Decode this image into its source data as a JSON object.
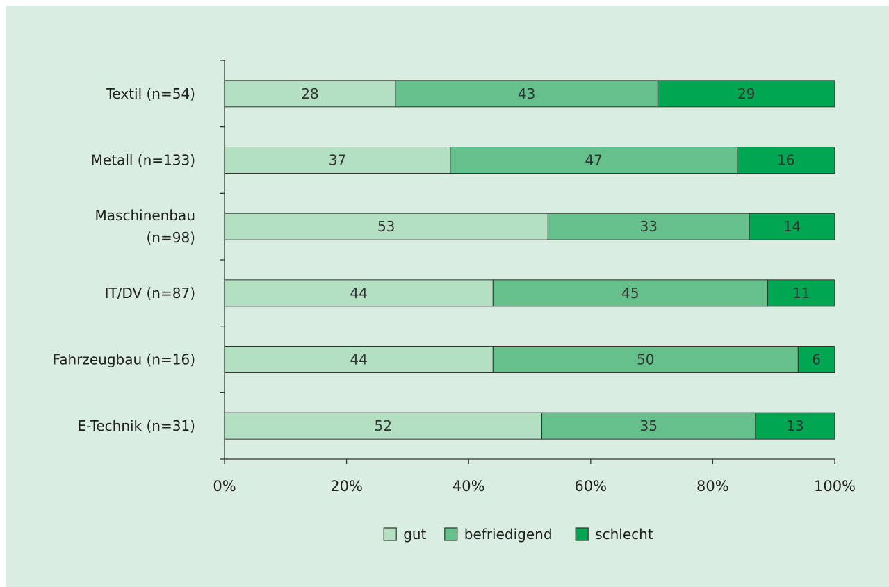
{
  "chart_data": {
    "type": "bar",
    "orientation": "horizontal",
    "stacked": true,
    "categories": [
      "Textil (n=54)",
      "Metall (n=133)",
      "Maschinenbau (n=98)",
      "IT/DV (n=87)",
      "Fahrzeugbau (n=16)",
      "E-Technik (n=31)"
    ],
    "category_lines": [
      [
        "Textil (n=54)"
      ],
      [
        "Metall (n=133)"
      ],
      [
        "Maschinenbau",
        "(n=98)"
      ],
      [
        "IT/DV (n=87)"
      ],
      [
        "Fahrzeugbau (n=16)"
      ],
      [
        "E-Technik (n=31)"
      ]
    ],
    "series": [
      {
        "name": "gut",
        "values": [
          28,
          37,
          53,
          44,
          44,
          52
        ],
        "color": "#b3dfc3"
      },
      {
        "name": "befriedigend",
        "values": [
          43,
          47,
          33,
          45,
          50,
          35
        ],
        "color": "#66c08c"
      },
      {
        "name": "schlecht",
        "values": [
          29,
          16,
          14,
          11,
          6,
          13
        ],
        "color": "#00a651"
      }
    ],
    "xlim": [
      0,
      100
    ],
    "xticks": [
      "0%",
      "20%",
      "40%",
      "60%",
      "80%",
      "100%"
    ],
    "xtick_values": [
      0,
      20,
      40,
      60,
      80,
      100
    ],
    "legend_position": "bottom",
    "grid": false,
    "background_color": "#d9ede0"
  }
}
